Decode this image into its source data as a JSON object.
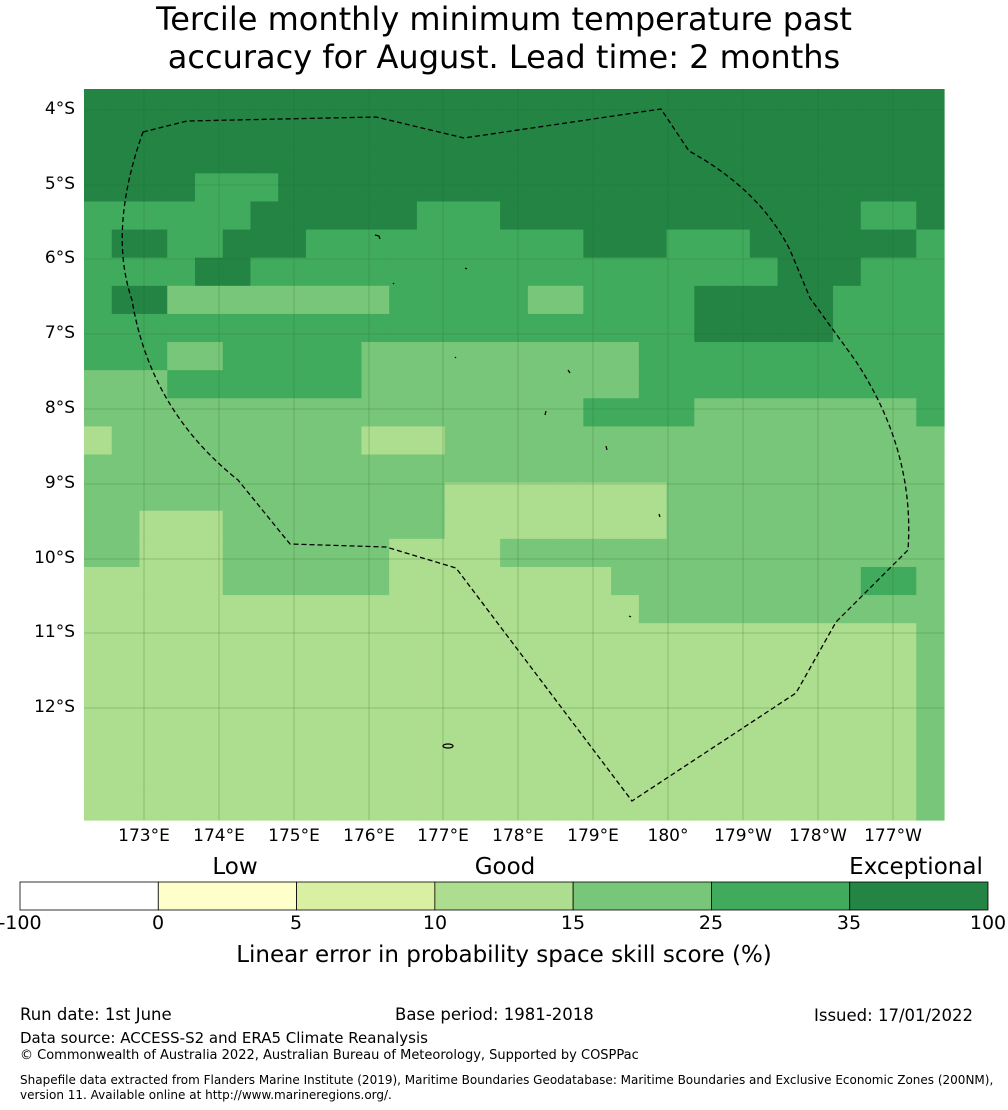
{
  "title": {
    "line1": "Tercile monthly minimum temperature past",
    "line2": "accuracy for August. Lead time: 2 months"
  },
  "map": {
    "lat_labels": [
      "4°S",
      "5°S",
      "6°S",
      "7°S",
      "8°S",
      "9°S",
      "10°S",
      "11°S",
      "12°S"
    ],
    "lon_labels": [
      "173°E",
      "174°E",
      "175°E",
      "176°E",
      "177°E",
      "178°E",
      "179°E",
      "180°",
      "179°W",
      "178°W",
      "177°W"
    ],
    "colors": [
      "#ffffff",
      "#ffffcc",
      "#d9f0a3",
      "#addd8e",
      "#78c679",
      "#41ab5d",
      "#238443"
    ],
    "grid": [
      [
        6,
        6,
        6,
        6,
        6,
        6,
        6,
        6,
        6,
        6,
        6,
        6,
        6,
        6,
        6,
        6,
        6,
        6,
        6,
        6,
        6,
        6,
        6,
        6,
        6,
        6,
        6,
        6,
        6,
        6,
        6
      ],
      [
        6,
        6,
        6,
        6,
        6,
        6,
        6,
        6,
        6,
        6,
        6,
        6,
        6,
        6,
        6,
        6,
        6,
        6,
        6,
        6,
        6,
        6,
        6,
        6,
        6,
        6,
        6,
        6,
        6,
        6,
        6
      ],
      [
        6,
        6,
        6,
        6,
        6,
        6,
        6,
        6,
        6,
        6,
        6,
        6,
        6,
        6,
        6,
        6,
        6,
        6,
        6,
        6,
        6,
        6,
        6,
        6,
        6,
        6,
        6,
        6,
        6,
        6,
        6
      ],
      [
        6,
        6,
        6,
        6,
        5,
        5,
        5,
        6,
        6,
        6,
        6,
        6,
        6,
        6,
        6,
        6,
        6,
        6,
        6,
        6,
        6,
        6,
        6,
        6,
        6,
        6,
        6,
        6,
        6,
        6,
        6
      ],
      [
        5,
        5,
        5,
        5,
        5,
        5,
        6,
        6,
        6,
        6,
        6,
        6,
        5,
        5,
        5,
        6,
        6,
        6,
        6,
        6,
        6,
        6,
        6,
        6,
        6,
        6,
        6,
        6,
        5,
        5,
        6
      ],
      [
        5,
        6,
        6,
        5,
        5,
        6,
        6,
        6,
        5,
        5,
        5,
        5,
        5,
        5,
        5,
        5,
        5,
        5,
        6,
        6,
        6,
        5,
        5,
        5,
        6,
        6,
        6,
        6,
        6,
        6,
        5
      ],
      [
        5,
        5,
        5,
        5,
        6,
        6,
        5,
        5,
        5,
        5,
        5,
        5,
        5,
        5,
        5,
        5,
        5,
        5,
        5,
        5,
        5,
        5,
        5,
        5,
        5,
        6,
        6,
        6,
        5,
        5,
        5
      ],
      [
        5,
        6,
        6,
        4,
        4,
        4,
        4,
        4,
        4,
        4,
        4,
        5,
        5,
        5,
        5,
        5,
        4,
        4,
        5,
        5,
        5,
        5,
        6,
        6,
        6,
        6,
        6,
        5,
        5,
        5,
        5
      ],
      [
        5,
        5,
        5,
        5,
        5,
        5,
        5,
        5,
        5,
        5,
        5,
        5,
        5,
        5,
        5,
        5,
        5,
        5,
        5,
        5,
        5,
        5,
        6,
        6,
        6,
        6,
        6,
        5,
        5,
        5,
        5
      ],
      [
        5,
        5,
        5,
        4,
        4,
        5,
        5,
        5,
        5,
        5,
        4,
        4,
        4,
        4,
        4,
        4,
        4,
        4,
        4,
        4,
        5,
        5,
        5,
        5,
        5,
        5,
        5,
        5,
        5,
        5,
        5
      ],
      [
        4,
        4,
        4,
        5,
        5,
        5,
        5,
        5,
        5,
        5,
        4,
        4,
        4,
        4,
        4,
        4,
        4,
        4,
        4,
        4,
        5,
        5,
        5,
        5,
        5,
        5,
        5,
        5,
        5,
        5,
        5
      ],
      [
        4,
        4,
        4,
        4,
        4,
        4,
        4,
        4,
        4,
        4,
        4,
        4,
        4,
        4,
        4,
        4,
        4,
        4,
        5,
        5,
        5,
        5,
        4,
        4,
        4,
        4,
        4,
        4,
        4,
        4,
        5
      ],
      [
        3,
        4,
        4,
        4,
        4,
        4,
        4,
        4,
        4,
        4,
        3,
        3,
        3,
        4,
        4,
        4,
        4,
        4,
        4,
        4,
        4,
        4,
        4,
        4,
        4,
        4,
        4,
        4,
        4,
        4,
        4
      ],
      [
        4,
        4,
        4,
        4,
        4,
        4,
        4,
        4,
        4,
        4,
        4,
        4,
        4,
        4,
        4,
        4,
        4,
        4,
        4,
        4,
        4,
        4,
        4,
        4,
        4,
        4,
        4,
        4,
        4,
        4,
        4
      ],
      [
        4,
        4,
        4,
        4,
        4,
        4,
        4,
        4,
        4,
        4,
        4,
        4,
        4,
        3,
        3,
        3,
        3,
        3,
        3,
        3,
        3,
        4,
        4,
        4,
        4,
        4,
        4,
        4,
        4,
        4,
        4
      ],
      [
        4,
        4,
        3,
        3,
        3,
        4,
        4,
        4,
        4,
        4,
        4,
        4,
        4,
        3,
        3,
        3,
        3,
        3,
        3,
        3,
        3,
        4,
        4,
        4,
        4,
        4,
        4,
        4,
        4,
        4,
        4
      ],
      [
        4,
        4,
        3,
        3,
        3,
        4,
        4,
        4,
        4,
        4,
        4,
        3,
        3,
        3,
        3,
        4,
        4,
        4,
        4,
        4,
        4,
        4,
        4,
        4,
        4,
        4,
        4,
        4,
        4,
        4,
        4
      ],
      [
        3,
        3,
        3,
        3,
        3,
        4,
        4,
        4,
        4,
        4,
        4,
        3,
        3,
        3,
        3,
        3,
        3,
        3,
        3,
        4,
        4,
        4,
        4,
        4,
        4,
        4,
        4,
        4,
        5,
        5,
        4
      ],
      [
        3,
        3,
        3,
        3,
        3,
        3,
        3,
        3,
        3,
        3,
        3,
        3,
        3,
        3,
        3,
        3,
        3,
        3,
        3,
        3,
        4,
        4,
        4,
        4,
        4,
        4,
        4,
        4,
        4,
        4,
        4
      ],
      [
        3,
        3,
        3,
        3,
        3,
        3,
        3,
        3,
        3,
        3,
        3,
        3,
        3,
        3,
        3,
        3,
        3,
        3,
        3,
        3,
        3,
        3,
        3,
        3,
        3,
        3,
        3,
        3,
        3,
        3,
        4
      ],
      [
        3,
        3,
        3,
        3,
        3,
        3,
        3,
        3,
        3,
        3,
        3,
        3,
        3,
        3,
        3,
        3,
        3,
        3,
        3,
        3,
        3,
        3,
        3,
        3,
        3,
        3,
        3,
        3,
        3,
        3,
        4
      ],
      [
        3,
        3,
        3,
        3,
        3,
        3,
        3,
        3,
        3,
        3,
        3,
        3,
        3,
        3,
        3,
        3,
        3,
        3,
        3,
        3,
        3,
        3,
        3,
        3,
        3,
        3,
        3,
        3,
        3,
        3,
        4
      ],
      [
        3,
        3,
        3,
        3,
        3,
        3,
        3,
        3,
        3,
        3,
        3,
        3,
        3,
        3,
        3,
        3,
        3,
        3,
        3,
        3,
        3,
        3,
        3,
        3,
        3,
        3,
        3,
        3,
        3,
        3,
        4
      ],
      [
        3,
        3,
        3,
        3,
        3,
        3,
        3,
        3,
        3,
        3,
        3,
        3,
        3,
        3,
        3,
        3,
        3,
        3,
        3,
        3,
        3,
        3,
        3,
        3,
        3,
        3,
        3,
        3,
        3,
        3,
        4
      ],
      [
        3,
        3,
        3,
        3,
        3,
        3,
        3,
        3,
        3,
        3,
        3,
        3,
        3,
        3,
        3,
        3,
        3,
        3,
        3,
        3,
        3,
        3,
        3,
        3,
        3,
        3,
        3,
        3,
        3,
        3,
        4
      ],
      [
        3,
        3,
        3,
        3,
        3,
        3,
        3,
        3,
        3,
        3,
        3,
        3,
        3,
        3,
        3,
        3,
        3,
        3,
        3,
        3,
        3,
        3,
        3,
        3,
        3,
        3,
        3,
        3,
        3,
        3,
        4
      ]
    ],
    "categories": [
      "Low",
      "Good",
      "Exceptional"
    ]
  },
  "colorbar": {
    "ticks": [
      "-100",
      "0",
      "5",
      "10",
      "15",
      "25",
      "35",
      "100"
    ],
    "colors": [
      "#ffffff",
      "#ffffcc",
      "#d9f0a3",
      "#addd8e",
      "#78c679",
      "#41ab5d",
      "#238443"
    ],
    "label": "Linear error in probability space skill score (%)"
  },
  "footer": {
    "run_date": "Run date: 1st June",
    "base_period": "Base period: 1981-2018",
    "issued": "Issued: 17/01/2022",
    "data_source": "Data source: ACCESS-S2 and ERA5 Climate Reanalysis",
    "copyright": "© Commonwealth of Australia 2022, Australian Bureau of Meteorology, Supported by COSPPac",
    "shapefile_line1": "Shapefile data extracted from Flanders Marine Institute (2019), Maritime Boundaries Geodatabase: Maritime Boundaries and Exclusive Economic Zones (200NM),",
    "shapefile_line2": "version 11. Available online at http://www.marineregions.org/."
  }
}
